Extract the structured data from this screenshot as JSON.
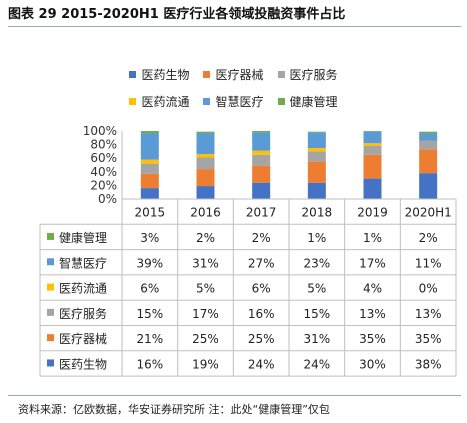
{
  "title": "图表 29 2015-2020H1 医疗行业各领域投融资事件占比",
  "source": "资料来源：亿欧数据，华安证券研究所 注：此处“健康管理”仅包",
  "chart_data": {
    "type": "stacked-bar-100",
    "categories": [
      "2015",
      "2016",
      "2017",
      "2018",
      "2019",
      "2020H1"
    ],
    "y_ticks": [
      "100%",
      "80%",
      "60%",
      "40%",
      "20%",
      "0%"
    ],
    "ylim": [
      0,
      100
    ],
    "legend_position": "top",
    "series": [
      {
        "name": "医药生物",
        "color": "#4472C4",
        "values": [
          16,
          19,
          24,
          24,
          30,
          38
        ],
        "labels": [
          "16%",
          "19%",
          "24%",
          "24%",
          "30%",
          "38%"
        ]
      },
      {
        "name": "医疗器械",
        "color": "#ED7D31",
        "values": [
          21,
          25,
          25,
          31,
          35,
          35
        ],
        "labels": [
          "21%",
          "25%",
          "25%",
          "31%",
          "35%",
          "35%"
        ]
      },
      {
        "name": "医疗服务",
        "color": "#A5A5A5",
        "values": [
          15,
          17,
          16,
          15,
          13,
          13
        ],
        "labels": [
          "15%",
          "17%",
          "16%",
          "15%",
          "13%",
          "13%"
        ]
      },
      {
        "name": "医药流通",
        "color": "#FFC000",
        "values": [
          6,
          5,
          6,
          5,
          4,
          0
        ],
        "labels": [
          "6%",
          "5%",
          "6%",
          "5%",
          "4%",
          "0%"
        ]
      },
      {
        "name": "智慧医疗",
        "color": "#5B9BD5",
        "values": [
          39,
          31,
          27,
          23,
          17,
          11
        ],
        "labels": [
          "39%",
          "31%",
          "27%",
          "23%",
          "17%",
          "11%"
        ]
      },
      {
        "name": "健康管理",
        "color": "#70AD47",
        "values": [
          3,
          2,
          2,
          1,
          1,
          2
        ],
        "labels": [
          "3%",
          "2%",
          "2%",
          "1%",
          "1%",
          "2%"
        ]
      }
    ]
  }
}
